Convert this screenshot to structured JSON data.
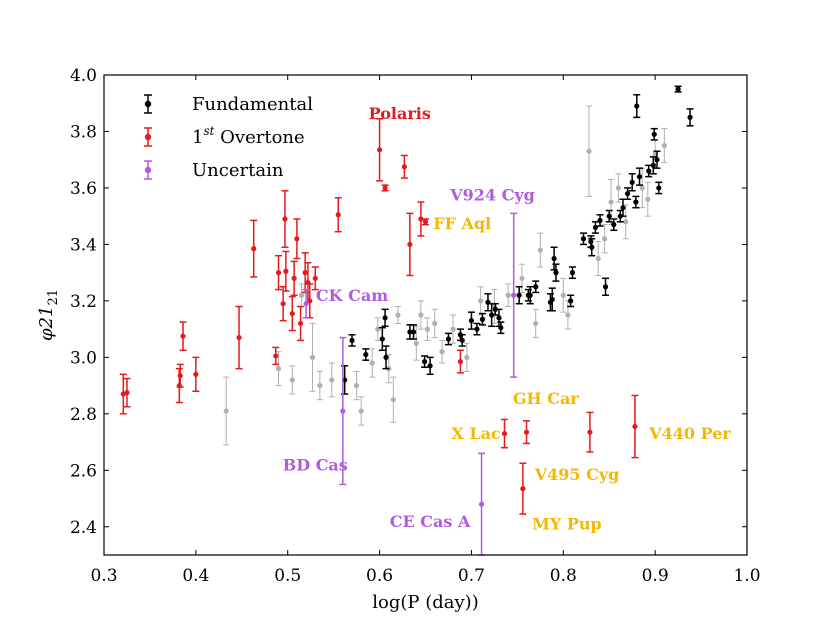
{
  "chart_data": {
    "type": "scatter",
    "xlabel": "log(P (day))",
    "ylabel": "φ21",
    "xlim": [
      0.3,
      1.0
    ],
    "ylim": [
      2.3,
      4.0
    ],
    "xticks": [
      "0.3",
      "0.4",
      "0.5",
      "0.6",
      "0.7",
      "0.8",
      "0.9",
      "1.0"
    ],
    "yticks": [
      "2.4",
      "2.6",
      "2.8",
      "3.0",
      "3.2",
      "3.4",
      "3.6",
      "3.8",
      "4.0"
    ],
    "legend": {
      "position": "top-left",
      "entries": [
        {
          "label": "Fundamental",
          "series": "fundamental"
        },
        {
          "label": "1",
          "sup": "st",
          "label_rest": " Overtone",
          "series": "overtone"
        },
        {
          "label": "Uncertain",
          "series": "uncertain"
        }
      ]
    },
    "colors": {
      "fundamental": "#000000",
      "overtone": "#e41a1c",
      "uncertain": "#b05cdc",
      "background": "#b0b0b0",
      "annotation_orange": "#f5b800"
    },
    "series": [
      {
        "name": "fundamental",
        "points": [
          {
            "x": 0.562,
            "y": 2.92,
            "err": 0.05
          },
          {
            "x": 0.57,
            "y": 3.06,
            "err": 0.02
          },
          {
            "x": 0.585,
            "y": 3.01,
            "err": 0.02
          },
          {
            "x": 0.603,
            "y": 3.065,
            "err": 0.04
          },
          {
            "x": 0.606,
            "y": 3.14,
            "err": 0.03
          },
          {
            "x": 0.607,
            "y": 3.0,
            "err": 0.04
          },
          {
            "x": 0.633,
            "y": 3.09,
            "err": 0.025
          },
          {
            "x": 0.637,
            "y": 3.09,
            "err": 0.025
          },
          {
            "x": 0.649,
            "y": 2.985,
            "err": 0.02
          },
          {
            "x": 0.655,
            "y": 2.97,
            "err": 0.03
          },
          {
            "x": 0.675,
            "y": 3.065,
            "err": 0.02
          },
          {
            "x": 0.688,
            "y": 3.08,
            "err": 0.02
          },
          {
            "x": 0.69,
            "y": 3.06,
            "err": 0.02
          },
          {
            "x": 0.7,
            "y": 3.13,
            "err": 0.03
          },
          {
            "x": 0.706,
            "y": 3.1,
            "err": 0.02
          },
          {
            "x": 0.712,
            "y": 3.135,
            "err": 0.02
          },
          {
            "x": 0.718,
            "y": 3.195,
            "err": 0.03
          },
          {
            "x": 0.722,
            "y": 3.15,
            "err": 0.04
          },
          {
            "x": 0.726,
            "y": 3.17,
            "err": 0.02
          },
          {
            "x": 0.73,
            "y": 3.14,
            "err": 0.03
          },
          {
            "x": 0.732,
            "y": 3.105,
            "err": 0.02
          },
          {
            "x": 0.752,
            "y": 3.22,
            "err": 0.03
          },
          {
            "x": 0.762,
            "y": 3.22,
            "err": 0.02
          },
          {
            "x": 0.764,
            "y": 3.22,
            "err": 0.03
          },
          {
            "x": 0.77,
            "y": 3.25,
            "err": 0.02
          },
          {
            "x": 0.786,
            "y": 3.195,
            "err": 0.03
          },
          {
            "x": 0.788,
            "y": 3.205,
            "err": 0.04
          },
          {
            "x": 0.79,
            "y": 3.35,
            "err": 0.04
          },
          {
            "x": 0.792,
            "y": 3.3,
            "err": 0.03
          },
          {
            "x": 0.808,
            "y": 3.2,
            "err": 0.02
          },
          {
            "x": 0.81,
            "y": 3.3,
            "err": 0.02
          },
          {
            "x": 0.822,
            "y": 3.42,
            "err": 0.02
          },
          {
            "x": 0.83,
            "y": 3.41,
            "err": 0.02
          },
          {
            "x": 0.831,
            "y": 3.39,
            "err": 0.03
          },
          {
            "x": 0.835,
            "y": 3.46,
            "err": 0.02
          },
          {
            "x": 0.84,
            "y": 3.485,
            "err": 0.02
          },
          {
            "x": 0.846,
            "y": 3.25,
            "err": 0.03
          },
          {
            "x": 0.85,
            "y": 3.5,
            "err": 0.02
          },
          {
            "x": 0.855,
            "y": 3.47,
            "err": 0.02
          },
          {
            "x": 0.862,
            "y": 3.5,
            "err": 0.02
          },
          {
            "x": 0.865,
            "y": 3.53,
            "err": 0.03
          },
          {
            "x": 0.87,
            "y": 3.58,
            "err": 0.02
          },
          {
            "x": 0.875,
            "y": 3.62,
            "err": 0.03
          },
          {
            "x": 0.879,
            "y": 3.55,
            "err": 0.02
          },
          {
            "x": 0.88,
            "y": 3.89,
            "err": 0.04
          },
          {
            "x": 0.883,
            "y": 3.64,
            "err": 0.03
          },
          {
            "x": 0.893,
            "y": 3.66,
            "err": 0.02
          },
          {
            "x": 0.898,
            "y": 3.68,
            "err": 0.03
          },
          {
            "x": 0.902,
            "y": 3.7,
            "err": 0.03
          },
          {
            "x": 0.904,
            "y": 3.6,
            "err": 0.02
          },
          {
            "x": 0.899,
            "y": 3.79,
            "err": 0.02
          },
          {
            "x": 0.925,
            "y": 3.95,
            "err": 0.01
          },
          {
            "x": 0.938,
            "y": 3.85,
            "err": 0.03
          }
        ]
      },
      {
        "name": "overtone",
        "points": [
          {
            "x": 0.321,
            "y": 2.87,
            "err": 0.07
          },
          {
            "x": 0.325,
            "y": 2.875,
            "err": 0.05
          },
          {
            "x": 0.382,
            "y": 2.9,
            "err": 0.06
          },
          {
            "x": 0.383,
            "y": 2.935,
            "err": 0.04
          },
          {
            "x": 0.386,
            "y": 3.075,
            "err": 0.05
          },
          {
            "x": 0.4,
            "y": 2.94,
            "err": 0.06
          },
          {
            "x": 0.447,
            "y": 3.07,
            "err": 0.11
          },
          {
            "x": 0.463,
            "y": 3.385,
            "err": 0.1
          },
          {
            "x": 0.487,
            "y": 3.005,
            "err": 0.03
          },
          {
            "x": 0.49,
            "y": 3.3,
            "err": 0.06
          },
          {
            "x": 0.495,
            "y": 3.19,
            "err": 0.06
          },
          {
            "x": 0.497,
            "y": 3.49,
            "err": 0.1
          },
          {
            "x": 0.498,
            "y": 3.305,
            "err": 0.07
          },
          {
            "x": 0.505,
            "y": 3.155,
            "err": 0.06
          },
          {
            "x": 0.507,
            "y": 3.28,
            "err": 0.06
          },
          {
            "x": 0.51,
            "y": 3.42,
            "err": 0.07
          },
          {
            "x": 0.514,
            "y": 3.12,
            "err": 0.06
          },
          {
            "x": 0.519,
            "y": 3.3,
            "err": 0.07
          },
          {
            "x": 0.522,
            "y": 3.265,
            "err": 0.07
          },
          {
            "x": 0.524,
            "y": 3.2,
            "err": 0.06
          },
          {
            "x": 0.53,
            "y": 3.28,
            "err": 0.04
          },
          {
            "x": 0.555,
            "y": 3.505,
            "err": 0.06
          },
          {
            "x": 0.6,
            "y": 3.735,
            "err": 0.11
          },
          {
            "x": 0.606,
            "y": 3.6,
            "err": 0.01
          },
          {
            "x": 0.627,
            "y": 3.675,
            "err": 0.04
          },
          {
            "x": 0.633,
            "y": 3.4,
            "err": 0.11
          },
          {
            "x": 0.645,
            "y": 3.49,
            "err": 0.06
          },
          {
            "x": 0.65,
            "y": 3.48,
            "err": 0.01
          },
          {
            "x": 0.688,
            "y": 2.985,
            "err": 0.04
          },
          {
            "x": 0.736,
            "y": 2.73,
            "err": 0.05
          },
          {
            "x": 0.756,
            "y": 2.535,
            "err": 0.09
          },
          {
            "x": 0.76,
            "y": 2.735,
            "err": 0.04
          },
          {
            "x": 0.829,
            "y": 2.735,
            "err": 0.07
          },
          {
            "x": 0.878,
            "y": 2.755,
            "err": 0.11
          }
        ]
      },
      {
        "name": "uncertain",
        "points": [
          {
            "x": 0.52,
            "y": 3.19,
            "err": 0.05
          },
          {
            "x": 0.56,
            "y": 2.81,
            "err": 0.26
          },
          {
            "x": 0.711,
            "y": 2.48,
            "err": 0.18
          },
          {
            "x": 0.746,
            "y": 3.22,
            "err": 0.29
          }
        ]
      },
      {
        "name": "background",
        "points": [
          {
            "x": 0.433,
            "y": 2.81,
            "err": 0.12
          },
          {
            "x": 0.49,
            "y": 2.96,
            "err": 0.06
          },
          {
            "x": 0.505,
            "y": 2.92,
            "err": 0.05
          },
          {
            "x": 0.515,
            "y": 3.22,
            "err": 0.04
          },
          {
            "x": 0.527,
            "y": 3.0,
            "err": 0.12
          },
          {
            "x": 0.535,
            "y": 2.9,
            "err": 0.05
          },
          {
            "x": 0.548,
            "y": 2.92,
            "err": 0.06
          },
          {
            "x": 0.575,
            "y": 2.9,
            "err": 0.05
          },
          {
            "x": 0.58,
            "y": 2.81,
            "err": 0.05
          },
          {
            "x": 0.592,
            "y": 2.98,
            "err": 0.05
          },
          {
            "x": 0.598,
            "y": 3.1,
            "err": 0.04
          },
          {
            "x": 0.61,
            "y": 2.96,
            "err": 0.05
          },
          {
            "x": 0.615,
            "y": 2.85,
            "err": 0.08
          },
          {
            "x": 0.62,
            "y": 3.15,
            "err": 0.03
          },
          {
            "x": 0.64,
            "y": 3.05,
            "err": 0.06
          },
          {
            "x": 0.645,
            "y": 3.15,
            "err": 0.05
          },
          {
            "x": 0.652,
            "y": 3.1,
            "err": 0.04
          },
          {
            "x": 0.66,
            "y": 3.12,
            "err": 0.05
          },
          {
            "x": 0.668,
            "y": 3.02,
            "err": 0.04
          },
          {
            "x": 0.68,
            "y": 3.1,
            "err": 0.05
          },
          {
            "x": 0.695,
            "y": 3.0,
            "err": 0.05
          },
          {
            "x": 0.71,
            "y": 3.2,
            "err": 0.05
          },
          {
            "x": 0.725,
            "y": 3.18,
            "err": 0.06
          },
          {
            "x": 0.74,
            "y": 3.22,
            "err": 0.04
          },
          {
            "x": 0.755,
            "y": 3.28,
            "err": 0.05
          },
          {
            "x": 0.77,
            "y": 3.12,
            "err": 0.05
          },
          {
            "x": 0.775,
            "y": 3.38,
            "err": 0.06
          },
          {
            "x": 0.8,
            "y": 3.22,
            "err": 0.06
          },
          {
            "x": 0.805,
            "y": 3.15,
            "err": 0.05
          },
          {
            "x": 0.828,
            "y": 3.73,
            "err": 0.16
          },
          {
            "x": 0.838,
            "y": 3.35,
            "err": 0.06
          },
          {
            "x": 0.845,
            "y": 3.42,
            "err": 0.05
          },
          {
            "x": 0.852,
            "y": 3.55,
            "err": 0.08
          },
          {
            "x": 0.86,
            "y": 3.6,
            "err": 0.05
          },
          {
            "x": 0.868,
            "y": 3.48,
            "err": 0.06
          },
          {
            "x": 0.886,
            "y": 3.6,
            "err": 0.07
          },
          {
            "x": 0.892,
            "y": 3.56,
            "err": 0.06
          },
          {
            "x": 0.9,
            "y": 3.72,
            "err": 0.05
          },
          {
            "x": 0.91,
            "y": 3.75,
            "err": 0.06
          }
        ]
      }
    ],
    "annotations": [
      {
        "text": "Polaris",
        "color": "overtone",
        "x": 0.622,
        "y": 3.845
      },
      {
        "text": "V924 Cyg",
        "color": "uncertain",
        "x": 0.723,
        "y": 3.555
      },
      {
        "text": "FF Aql",
        "color": "annotation_orange",
        "x": 0.69,
        "y": 3.455
      },
      {
        "text": "CK Cam",
        "color": "uncertain",
        "x": 0.57,
        "y": 3.2
      },
      {
        "text": "BD Cas",
        "color": "uncertain",
        "x": 0.53,
        "y": 2.6
      },
      {
        "text": "GH Car",
        "color": "annotation_orange",
        "x": 0.781,
        "y": 2.835
      },
      {
        "text": "X Lac",
        "color": "annotation_orange",
        "x": 0.705,
        "y": 2.71
      },
      {
        "text": "V440 Per",
        "color": "annotation_orange",
        "x": 0.938,
        "y": 2.71
      },
      {
        "text": "V495 Cyg",
        "color": "annotation_orange",
        "x": 0.815,
        "y": 2.565
      },
      {
        "text": "CE Cas A",
        "color": "uncertain",
        "x": 0.655,
        "y": 2.4
      },
      {
        "text": "MY Pup",
        "color": "annotation_orange",
        "x": 0.804,
        "y": 2.39
      }
    ]
  }
}
